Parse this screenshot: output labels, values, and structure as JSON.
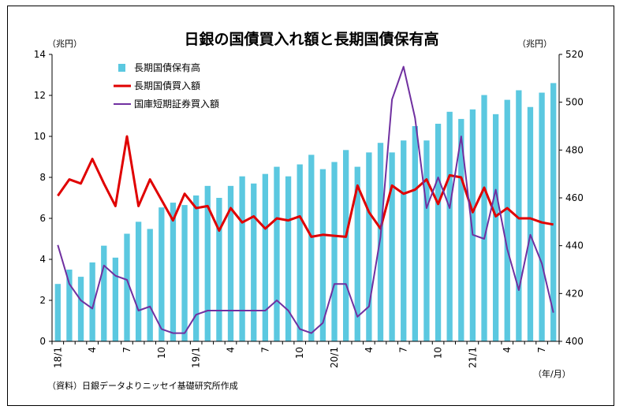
{
  "chart_data": {
    "type": "bar",
    "title": "日銀の国債買入れ額と長期国債保有高",
    "left_unit": "（兆円）",
    "right_unit": "（兆円）",
    "x_unit": "（年/月）",
    "source_note": "（資料）日銀データよりニッセイ基礎研究所作成",
    "x_tick_labels": [
      "18/1",
      "4",
      "7",
      "10",
      "19/1",
      "4",
      "7",
      "10",
      "20/1",
      "4",
      "7",
      "10",
      "21/1",
      "4",
      "7"
    ],
    "y_left": {
      "min": 0,
      "max": 14,
      "step": 2,
      "ticks": [
        "0",
        "2",
        "4",
        "6",
        "8",
        "10",
        "12",
        "14"
      ]
    },
    "y_right": {
      "min": 400,
      "max": 520,
      "step": 20,
      "ticks": [
        "400",
        "420",
        "440",
        "460",
        "480",
        "500",
        "520"
      ]
    },
    "months": [
      "2018-01",
      "2018-02",
      "2018-03",
      "2018-04",
      "2018-05",
      "2018-06",
      "2018-07",
      "2018-08",
      "2018-09",
      "2018-10",
      "2018-11",
      "2018-12",
      "2019-01",
      "2019-02",
      "2019-03",
      "2019-04",
      "2019-05",
      "2019-06",
      "2019-07",
      "2019-08",
      "2019-09",
      "2019-10",
      "2019-11",
      "2019-12",
      "2020-01",
      "2020-02",
      "2020-03",
      "2020-04",
      "2020-05",
      "2020-06",
      "2020-07",
      "2020-08",
      "2020-09",
      "2020-10",
      "2020-11",
      "2020-12",
      "2021-01",
      "2021-02",
      "2021-03",
      "2021-04",
      "2021-05",
      "2021-06",
      "2021-07",
      "2021-08"
    ],
    "series": [
      {
        "name": "長期国債保有高",
        "kind": "bar",
        "axis": "right",
        "color": "#5bc8e0",
        "values": [
          424,
          430,
          427,
          433,
          440,
          435,
          445,
          450,
          447,
          456,
          458,
          457,
          461,
          465,
          460,
          465,
          469,
          466,
          470,
          473,
          469,
          474,
          478,
          472,
          475,
          480,
          473,
          479,
          483,
          479,
          484,
          490,
          484,
          491,
          496,
          493,
          497,
          503,
          495,
          501,
          505,
          498,
          504,
          508
        ]
      },
      {
        "name": "長期国債買入額",
        "kind": "line",
        "axis": "left",
        "color": "#e00000",
        "values": [
          7.1,
          7.9,
          7.7,
          8.9,
          7.7,
          6.6,
          10.0,
          6.6,
          7.9,
          6.9,
          5.9,
          7.2,
          6.5,
          6.6,
          5.4,
          6.5,
          5.8,
          6.1,
          5.5,
          6.0,
          5.9,
          6.1,
          5.1,
          5.2,
          5.15,
          5.1,
          7.6,
          6.3,
          5.5,
          7.6,
          7.2,
          7.4,
          7.9,
          6.7,
          8.1,
          8.0,
          6.3,
          7.5,
          6.1,
          6.5,
          6.0,
          6.0,
          5.8,
          5.7
        ]
      },
      {
        "name": "国庫短期証券買入額",
        "kind": "line",
        "axis": "left",
        "color": "#7030a0",
        "values": [
          4.7,
          2.8,
          2.0,
          1.6,
          3.7,
          3.2,
          3.0,
          1.5,
          1.7,
          0.6,
          0.4,
          0.4,
          1.3,
          1.5,
          1.5,
          1.5,
          1.5,
          1.5,
          1.5,
          2.0,
          1.5,
          0.6,
          0.4,
          0.9,
          2.8,
          2.8,
          1.2,
          1.7,
          5.1,
          11.8,
          13.4,
          10.9,
          6.5,
          8.0,
          6.5,
          10.0,
          5.2,
          5.0,
          7.4,
          4.5,
          2.5,
          5.2,
          3.8,
          1.4
        ]
      }
    ],
    "legend_position": "top-left",
    "grid": false
  }
}
